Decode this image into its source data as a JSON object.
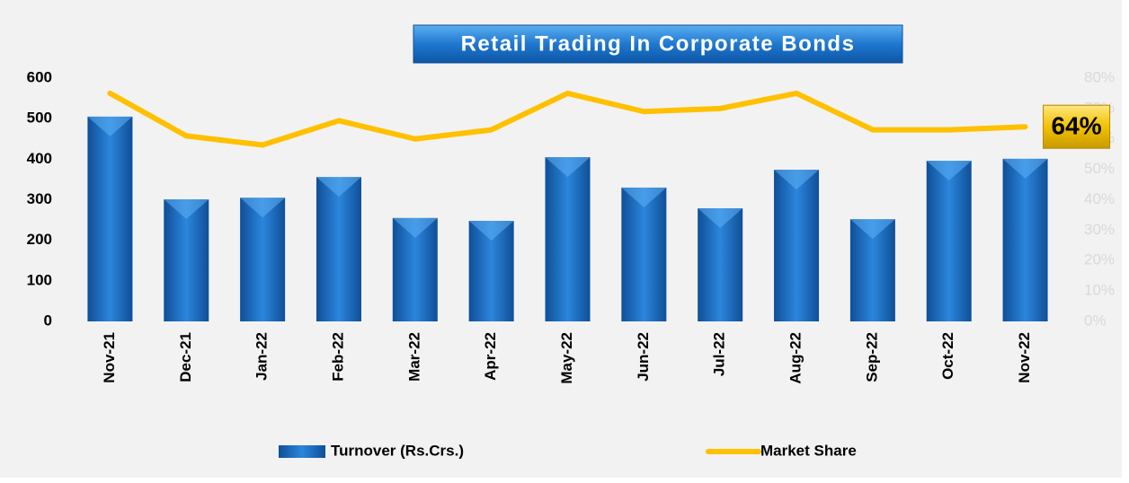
{
  "chart_data": {
    "type": "bar_line",
    "title": "Retail Trading In Corporate Bonds",
    "categories": [
      "Nov-21",
      "Dec-21",
      "Jan-22",
      "Feb-22",
      "Mar-22",
      "Apr-22",
      "May-22",
      "Jun-22",
      "Jul-22",
      "Aug-22",
      "Sep-22",
      "Oct-22",
      "Nov-22"
    ],
    "series": [
      {
        "name": "Turnover (Rs.Crs.)",
        "type": "bar",
        "color": "#1f6fc5",
        "values": [
          505,
          301,
          305,
          356,
          255,
          248,
          405,
          330,
          279,
          374,
          252,
          396,
          401
        ]
      },
      {
        "name": "Market Share",
        "type": "line",
        "axis": "y2",
        "color": "#ffc000",
        "values": [
          75,
          61,
          58,
          66,
          60,
          63,
          75,
          69,
          70,
          75,
          63,
          63,
          64
        ],
        "value_labels": [
          null,
          null,
          null,
          null,
          null,
          null,
          null,
          null,
          null,
          null,
          null,
          null,
          "64%"
        ]
      }
    ],
    "ylim": [
      0,
      600
    ],
    "yticks": [
      0,
      100,
      200,
      300,
      400,
      500,
      600
    ],
    "y2lim": [
      0,
      80
    ],
    "y2ticks": [
      {
        "value": 0,
        "label": "0%"
      },
      {
        "value": 10,
        "label": "10%"
      },
      {
        "value": 20,
        "label": "20%"
      },
      {
        "value": 30,
        "label": "30%"
      },
      {
        "value": 40,
        "label": "40%"
      },
      {
        "value": 50,
        "label": "50%"
      },
      {
        "value": 60,
        "label": "60%"
      },
      {
        "value": 70,
        "label": "70%"
      },
      {
        "value": 80,
        "label": "80%"
      }
    ],
    "grid": false,
    "legend": "bottom"
  }
}
